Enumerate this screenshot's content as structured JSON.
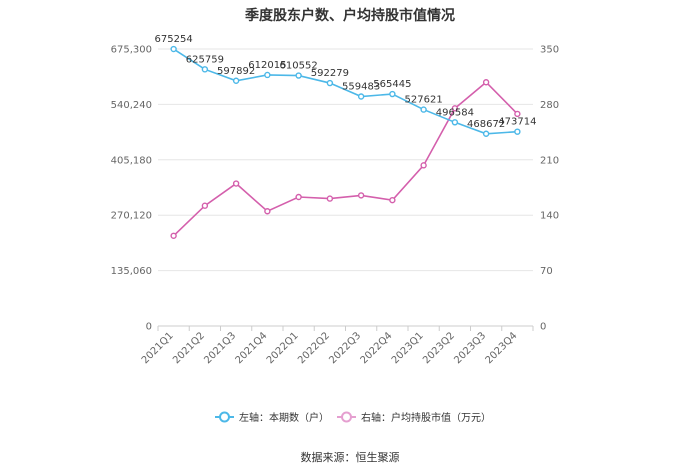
{
  "chart_data": {
    "type": "line",
    "title": "季度股东户数、户均持股市值情况",
    "categories": [
      "2021Q1",
      "2021Q2",
      "2021Q3",
      "2021Q4",
      "2022Q1",
      "2022Q2",
      "2022Q3",
      "2022Q4",
      "2023Q1",
      "2023Q2",
      "2023Q3",
      "2023Q4"
    ],
    "left_axis": {
      "ticks": [
        "0",
        "135,060",
        "270,120",
        "405,180",
        "540,240",
        "675,300"
      ],
      "range": [
        0,
        675300
      ]
    },
    "right_axis": {
      "ticks": [
        "0",
        "70",
        "140",
        "210",
        "280",
        "350"
      ],
      "range": [
        0,
        350
      ]
    },
    "series": [
      {
        "name": "左轴：本期数（户）",
        "axis": "left",
        "color": "#4cb8e8",
        "values": [
          675254,
          625759,
          597892,
          612015,
          610552,
          592279,
          559483,
          565445,
          527621,
          496584,
          468672,
          473714
        ],
        "labels": [
          "675254",
          "625759",
          "597892",
          "612015",
          "610552",
          "592279",
          "559483",
          "565445",
          "527621",
          "496584",
          "468672",
          "473714"
        ]
      },
      {
        "name": "右轴：户均持股市值（万元）",
        "axis": "right",
        "color": "#d45fac",
        "values": [
          114,
          152,
          180,
          145,
          163,
          161,
          165,
          159,
          203,
          275,
          308,
          268
        ]
      }
    ],
    "legend_position": "bottom-center",
    "grid": true
  },
  "footer": {
    "source": "数据来源：恒生聚源"
  }
}
